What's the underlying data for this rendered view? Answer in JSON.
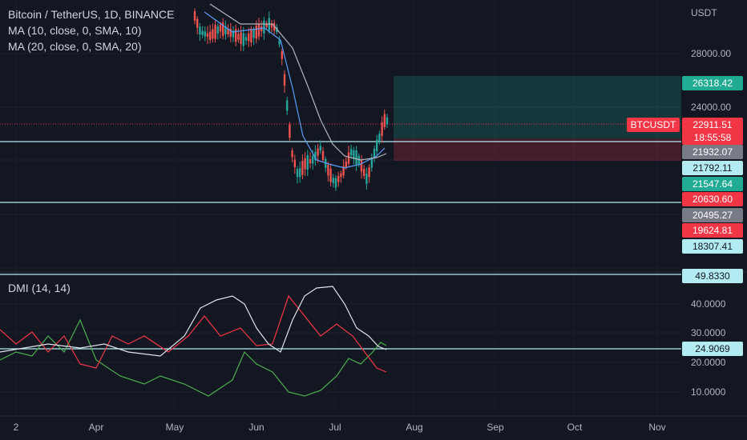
{
  "header": {
    "symbol_line": "Bitcoin / TetherUS, 1D, BINANCE",
    "ma10_label": "MA (10, close, 0, SMA, 10)",
    "ma20_label": "MA (20, close, 0, SMA, 20)"
  },
  "price_axis": {
    "currency": "USDT",
    "ticks": [
      "28000.00",
      "24000.00"
    ]
  },
  "price_tags": [
    {
      "id": "target",
      "label": "26318.42",
      "bg": "#22ab94",
      "fg": "#ffffff"
    },
    {
      "id": "last",
      "label": "22911.51",
      "bg": "#f23645",
      "fg": "#ffffff"
    },
    {
      "id": "countdown",
      "label": "18:55:58",
      "bg": "#f23645",
      "fg": "#ffffff"
    },
    {
      "id": "hline1",
      "label": "21932.07",
      "bg": "#787b86",
      "fg": "#ffffff"
    },
    {
      "id": "hline1b",
      "label": "21792.11",
      "bg": "#b2ebf2",
      "fg": "#131722"
    },
    {
      "id": "entry",
      "label": "21547.64",
      "bg": "#22ab94",
      "fg": "#ffffff"
    },
    {
      "id": "stop",
      "label": "20630.60",
      "bg": "#f23645",
      "fg": "#ffffff"
    },
    {
      "id": "hline2",
      "label": "20495.27",
      "bg": "#787b86",
      "fg": "#ffffff"
    },
    {
      "id": "low1",
      "label": "19624.81",
      "bg": "#f23645",
      "fg": "#ffffff"
    },
    {
      "id": "low2",
      "label": "18307.41",
      "bg": "#b2ebf2",
      "fg": "#131722"
    }
  ],
  "symbol_badge": {
    "label": "BTCUSDT",
    "bg": "#f23645"
  },
  "dmi": {
    "label": "DMI (14, 14)",
    "ticks": [
      "40.0000",
      "30.0000",
      "20.0000",
      "10.0000"
    ],
    "tags": [
      {
        "id": "top",
        "label": "49.8330",
        "bg": "#b2ebf2",
        "fg": "#131722"
      },
      {
        "id": "level",
        "label": "24.9069",
        "bg": "#b2ebf2",
        "fg": "#131722"
      }
    ]
  },
  "time_axis": [
    "2",
    "Apr",
    "May",
    "Jun",
    "Jul",
    "Aug",
    "Sep",
    "Oct",
    "Nov"
  ],
  "colors": {
    "bg": "#131722",
    "up": "#26a69a",
    "down": "#ef5350",
    "ma10": "#5b9cf6",
    "ma20": "#b2b5be",
    "plus_di": "#4caf50",
    "minus_di": "#f23645",
    "adx": "#e0e3eb",
    "hline": "#b2ebf2"
  }
}
